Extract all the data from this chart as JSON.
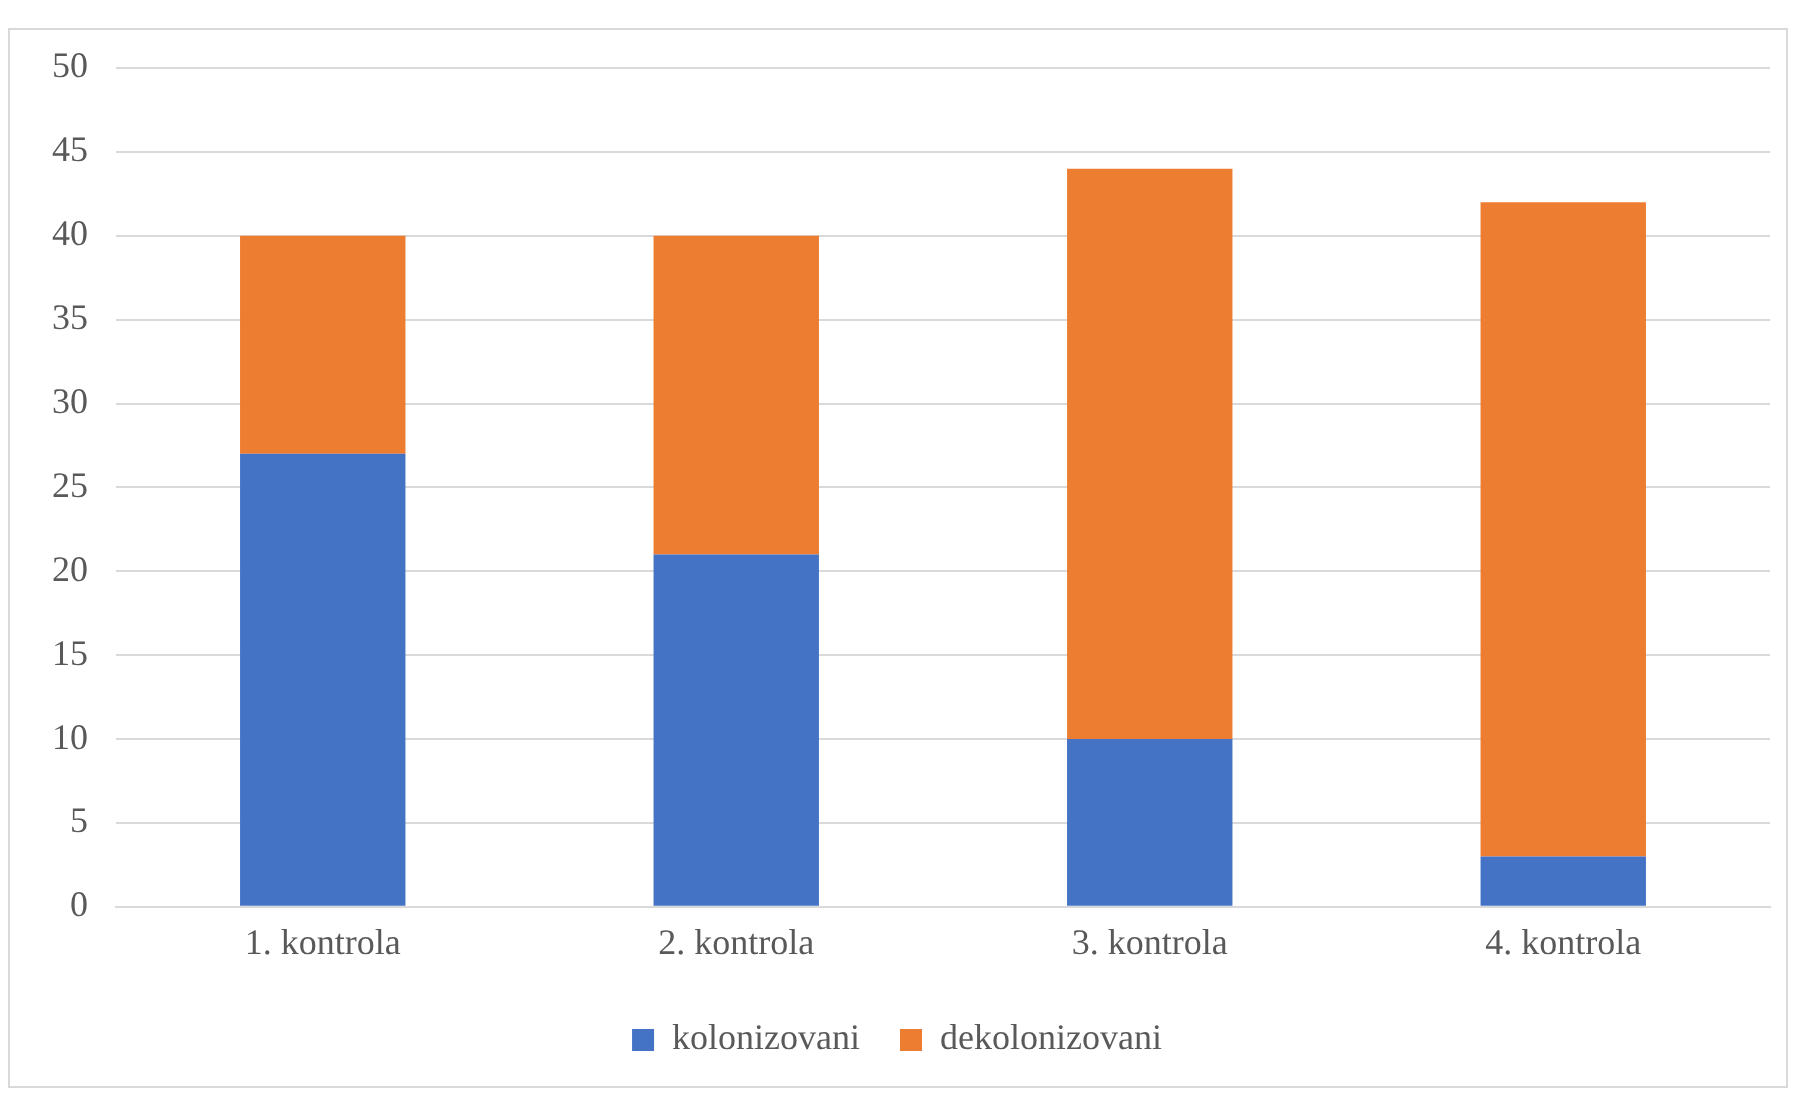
{
  "chart_data": {
    "type": "bar",
    "stacked": true,
    "categories": [
      "1. kontrola",
      "2. kontrola",
      "3. kontrola",
      "4. kontrola"
    ],
    "series": [
      {
        "name": "kolonizovani",
        "color": "#4472c4",
        "values": [
          27,
          21,
          10,
          3
        ]
      },
      {
        "name": "dekolonizovani",
        "color": "#ed7d31",
        "values": [
          13,
          19,
          34,
          39
        ]
      }
    ],
    "ylim": [
      0,
      50
    ],
    "yticks": [
      0,
      5,
      10,
      15,
      20,
      25,
      30,
      35,
      40,
      45,
      50
    ],
    "grid": "y",
    "legend": "bottom"
  }
}
